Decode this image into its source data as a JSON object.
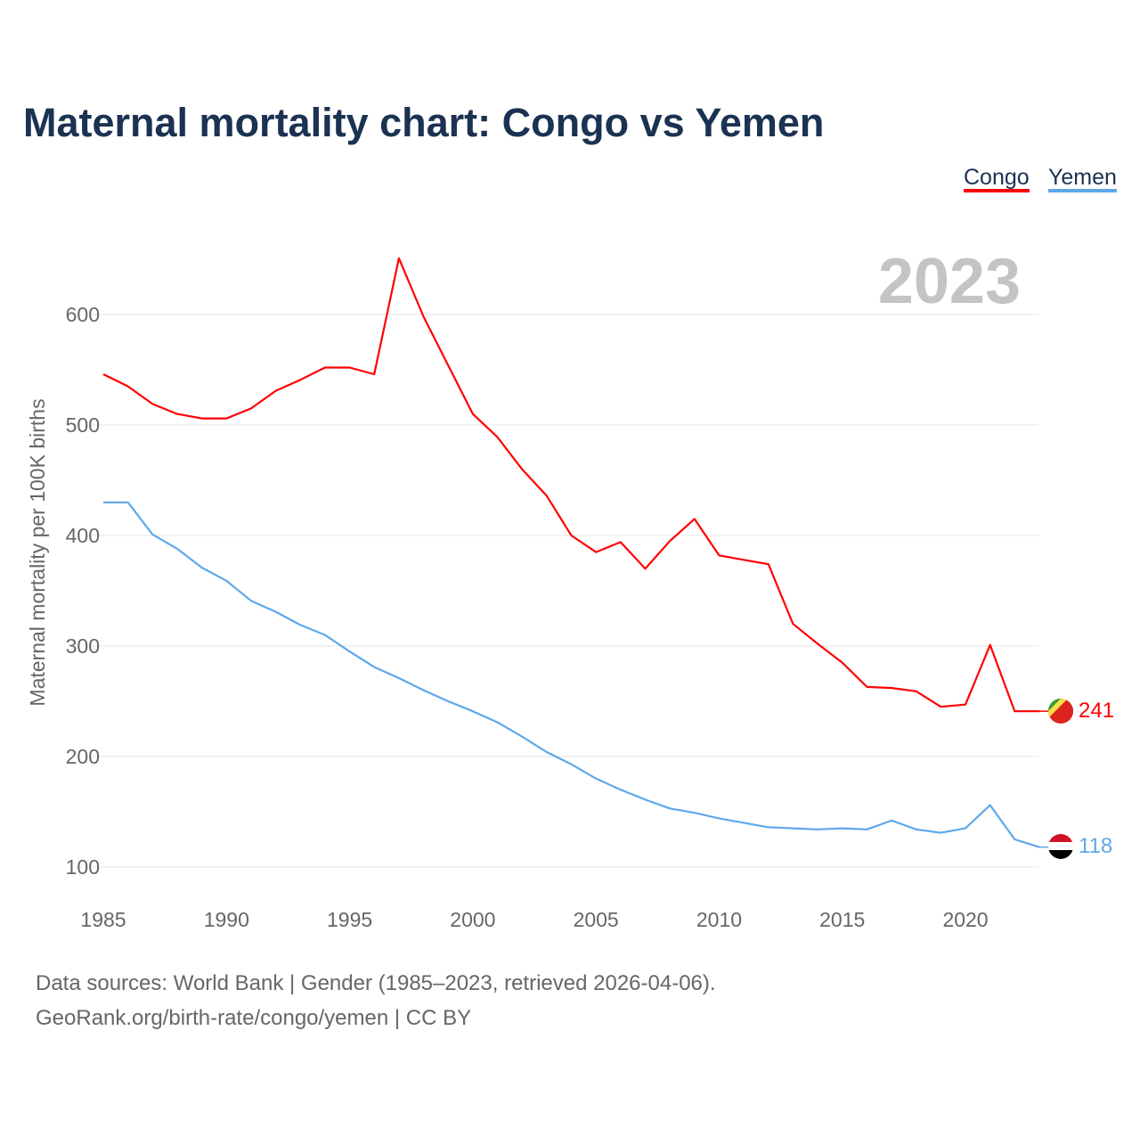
{
  "chart_data": {
    "type": "line",
    "title": "Maternal mortality chart: Congo vs Yemen",
    "ylabel": "Maternal mortality per 100K births",
    "xlabel": "",
    "year_label": "2023",
    "xlim": [
      1985,
      2023
    ],
    "ylim": [
      100,
      650
    ],
    "grid": true,
    "legend_placement": "top-right",
    "x_ticks": [
      1985,
      1990,
      1995,
      2000,
      2005,
      2010,
      2015,
      2020
    ],
    "y_ticks": [
      100,
      200,
      300,
      400,
      500,
      600
    ],
    "x": [
      1985,
      1986,
      1987,
      1988,
      1989,
      1990,
      1991,
      1992,
      1993,
      1994,
      1995,
      1996,
      1997,
      1998,
      1999,
      2000,
      2001,
      2002,
      2003,
      2004,
      2005,
      2006,
      2007,
      2008,
      2009,
      2010,
      2011,
      2012,
      2013,
      2014,
      2015,
      2016,
      2017,
      2018,
      2019,
      2020,
      2021,
      2022,
      2023
    ],
    "series": [
      {
        "name": "Congo",
        "color": "#ff0000",
        "end_label": "241",
        "values": [
          546,
          535,
          519,
          510,
          506,
          506,
          515,
          531,
          541,
          552,
          552,
          546,
          651,
          598,
          554,
          510,
          489,
          460,
          436,
          400,
          385,
          394,
          370,
          395,
          415,
          382,
          378,
          374,
          320,
          302,
          285,
          263,
          262,
          259,
          245,
          247,
          301,
          241,
          241
        ]
      },
      {
        "name": "Yemen",
        "color": "#5ea8ea",
        "end_label": "118",
        "values": [
          430,
          430,
          401,
          388,
          371,
          359,
          341,
          331,
          319,
          310,
          295,
          281,
          271,
          260,
          250,
          241,
          231,
          218,
          204,
          193,
          180,
          170,
          161,
          153,
          149,
          144,
          140,
          136,
          135,
          134,
          135,
          134,
          142,
          134,
          131,
          135,
          156,
          125,
          118
        ]
      }
    ]
  },
  "footer": {
    "line1": "Data sources: World Bank | Gender (1985–2023, retrieved 2026-04-06).",
    "line2": "GeoRank.org/birth-rate/congo/yemen | CC BY"
  }
}
